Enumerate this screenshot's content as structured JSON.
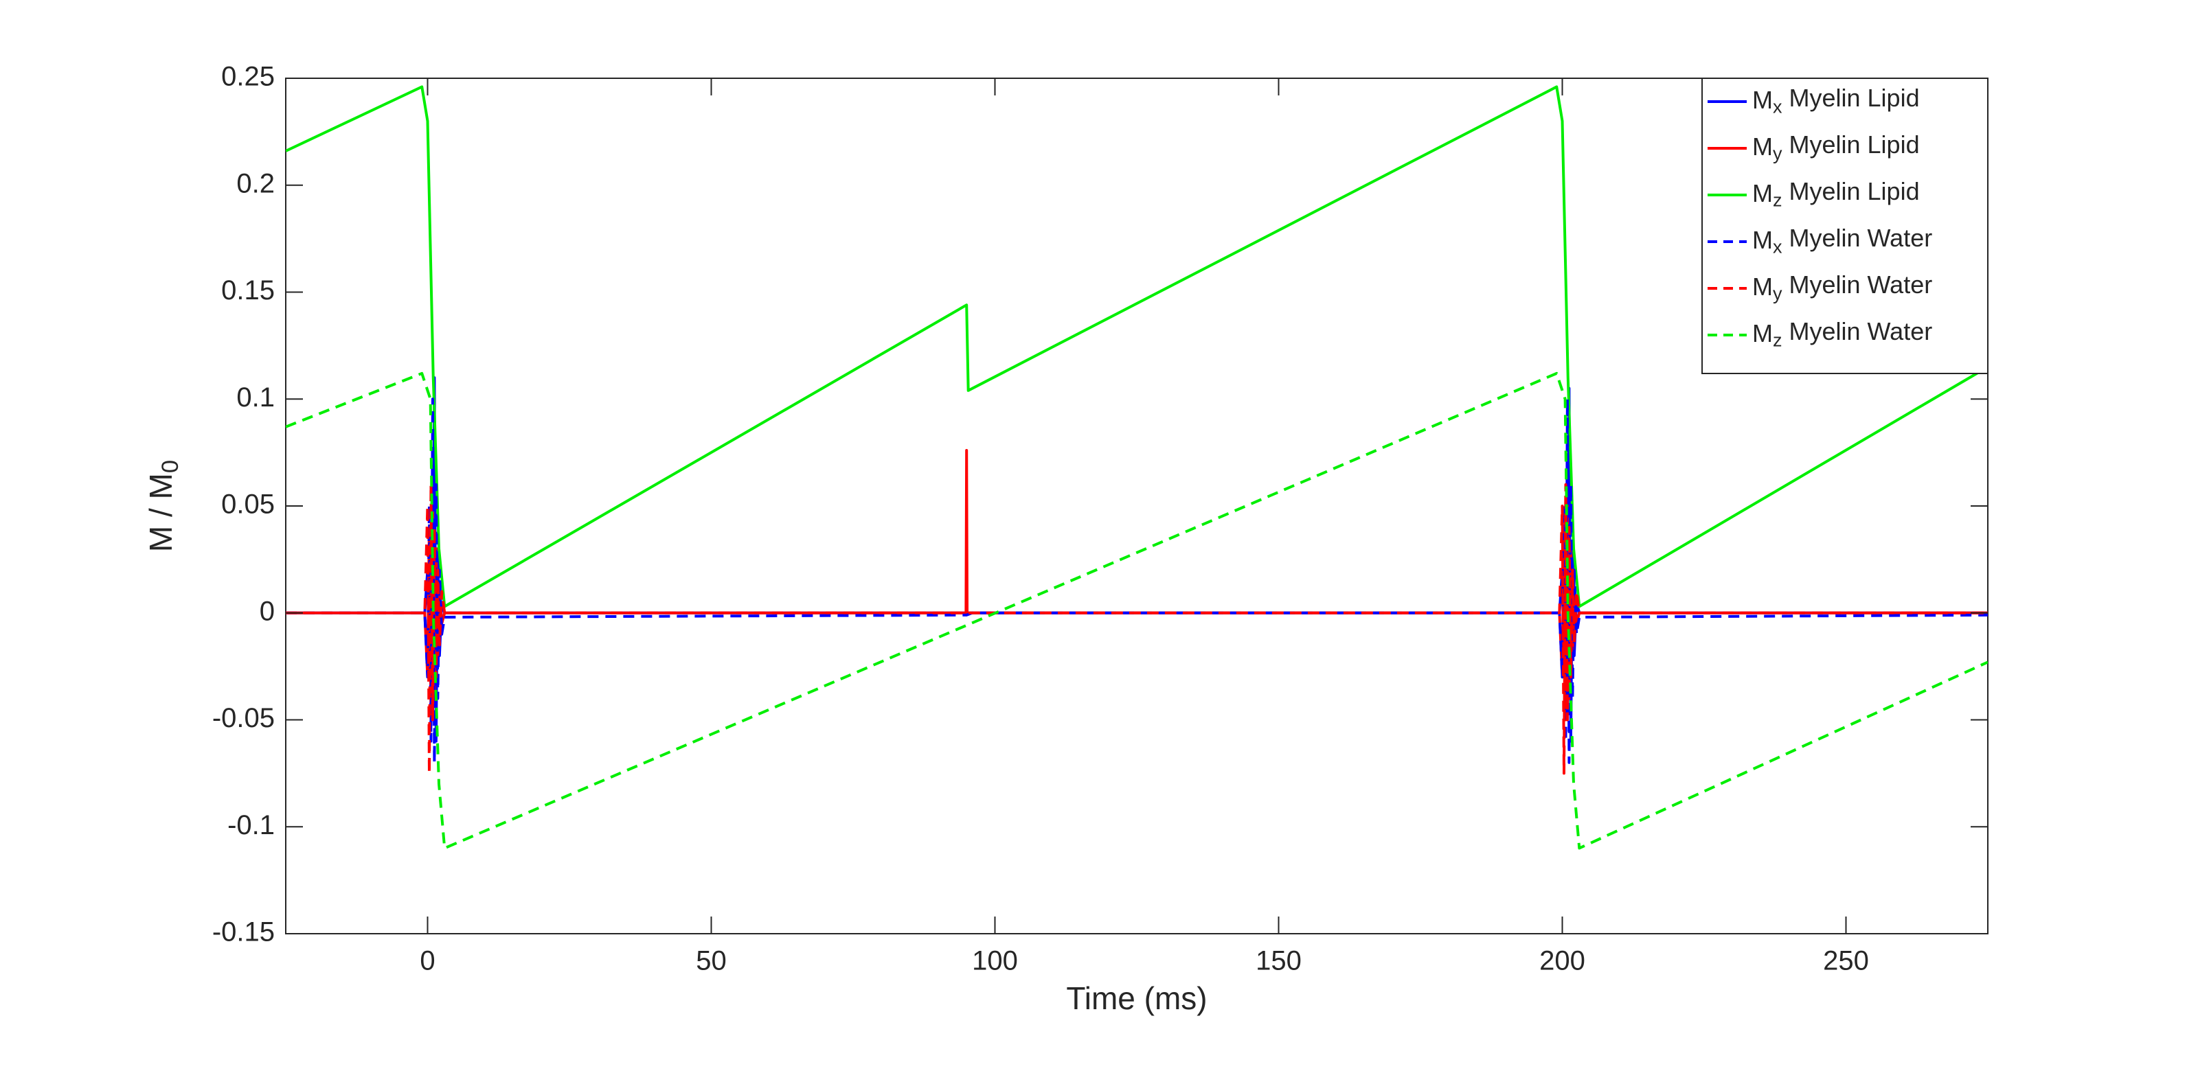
{
  "chart_data": {
    "type": "line",
    "xlabel": "Time (ms)",
    "ylabel": "M / M0",
    "xlim": [
      -25,
      275
    ],
    "xticks": [
      0,
      50,
      100,
      150,
      200,
      250
    ],
    "ylim": [
      -0.15,
      0.25
    ],
    "yticks": [
      -0.15,
      -0.1,
      -0.05,
      0,
      0.05,
      0.1,
      0.15,
      0.2,
      0.25
    ],
    "grid": false,
    "legend": "northeast",
    "series": [
      {
        "name": "Mx Myelin Lipid",
        "color": "#0000ff",
        "dashed": false,
        "x": [
          -25,
          -0.5,
          0,
          0.3,
          0.6,
          0.9,
          1.2,
          1.5,
          1.8,
          2.1,
          2.5,
          3,
          199.5,
          200,
          200.3,
          200.6,
          200.9,
          201.2,
          201.5,
          201.8,
          202.1,
          202.5,
          203,
          275
        ],
        "values": [
          0,
          0,
          0.02,
          -0.03,
          0.04,
          -0.05,
          0.11,
          -0.06,
          0.03,
          -0.02,
          0.005,
          0,
          0,
          0.02,
          -0.03,
          0.04,
          -0.05,
          0.105,
          -0.06,
          0.03,
          -0.02,
          0.005,
          0,
          0
        ]
      },
      {
        "name": "My Myelin Lipid",
        "color": "#ff0000",
        "dashed": false,
        "x": [
          -25,
          -0.5,
          0,
          0.3,
          0.6,
          0.9,
          1.2,
          1.5,
          1.8,
          2.1,
          2.5,
          3,
          94.9,
          95,
          95.1,
          95.5,
          199.5,
          200,
          200.3,
          200.6,
          200.9,
          201.2,
          201.5,
          201.8,
          202.1,
          202.5,
          203,
          275
        ],
        "values": [
          0,
          0,
          -0.03,
          0.04,
          -0.05,
          0.05,
          -0.04,
          0.03,
          -0.02,
          0.01,
          -0.005,
          0,
          0,
          0.076,
          0,
          0,
          0,
          -0.03,
          0.04,
          -0.05,
          0.05,
          -0.04,
          0.03,
          -0.02,
          0.01,
          -0.005,
          0,
          0
        ]
      },
      {
        "name": "Mz Myelin Lipid",
        "color": "#00ee00",
        "dashed": false,
        "x": [
          -25,
          -1,
          0,
          0.5,
          1,
          2,
          3,
          95,
          95.3,
          199,
          200,
          200.5,
          201,
          202,
          203,
          275
        ],
        "values": [
          0.216,
          0.246,
          0.23,
          0.17,
          0.11,
          0.03,
          0.003,
          0.144,
          0.104,
          0.246,
          0.23,
          0.17,
          0.11,
          0.03,
          0.003,
          0.115
        ]
      },
      {
        "name": "Mx Myelin Water",
        "color": "#0000ff",
        "dashed": true,
        "x": [
          -25,
          -0.5,
          0,
          0.3,
          0.6,
          0.9,
          1.2,
          1.5,
          1.8,
          2.1,
          2.5,
          3,
          95,
          96,
          199.5,
          200,
          200.3,
          200.6,
          200.9,
          201.2,
          201.5,
          201.8,
          202.1,
          202.5,
          203,
          275
        ],
        "values": [
          0,
          0,
          -0.03,
          0.05,
          -0.06,
          0.1,
          -0.07,
          0.06,
          -0.04,
          0.02,
          -0.01,
          -0.002,
          -0.001,
          0,
          0,
          -0.03,
          0.05,
          -0.06,
          0.1,
          -0.07,
          0.06,
          -0.04,
          0.02,
          -0.01,
          -0.002,
          -0.001
        ]
      },
      {
        "name": "My Myelin Water",
        "color": "#ff0000",
        "dashed": true,
        "x": [
          -25,
          -0.5,
          0,
          0.3,
          0.6,
          0.9,
          1.2,
          1.5,
          1.8,
          2.1,
          2.5,
          3,
          95,
          96,
          199.5,
          200,
          200.3,
          200.6,
          200.9,
          201.2,
          201.5,
          201.8,
          202.1,
          202.5,
          203,
          275
        ],
        "values": [
          0,
          0,
          0.05,
          -0.075,
          0.06,
          -0.05,
          0.04,
          -0.03,
          0.02,
          -0.015,
          0.01,
          0,
          0,
          0,
          0,
          0.05,
          -0.075,
          0.06,
          -0.05,
          0.04,
          -0.03,
          0.02,
          -0.015,
          0.01,
          0,
          0
        ]
      },
      {
        "name": "Mz Myelin Water",
        "color": "#00ee00",
        "dashed": true,
        "x": [
          -25,
          -1,
          0.5,
          1,
          2,
          3,
          199,
          200.5,
          201,
          202,
          203,
          275
        ],
        "values": [
          0.087,
          0.112,
          0.1,
          0.0,
          -0.08,
          -0.11,
          0.112,
          0.1,
          0.0,
          -0.08,
          -0.11,
          -0.023
        ]
      }
    ]
  }
}
